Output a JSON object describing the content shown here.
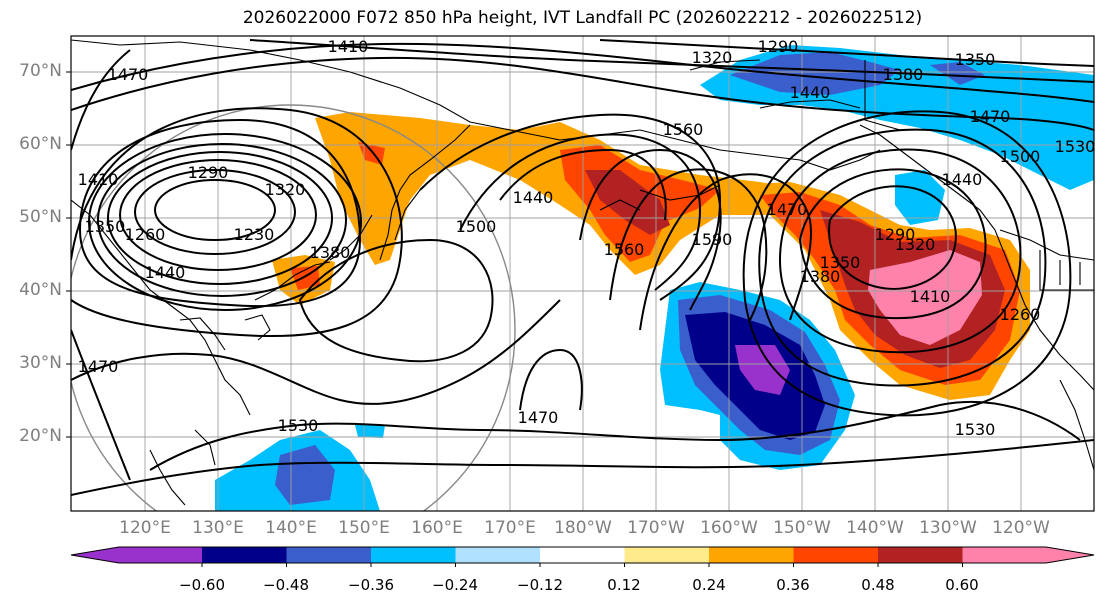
{
  "title": "2026022000 F072 850 hPa height, IVT Landfall PC (2026022212 - 2026022512)",
  "axes": {
    "lat_labels": [
      "70°N",
      "60°N",
      "50°N",
      "40°N",
      "30°N",
      "20°N"
    ],
    "lon_labels": [
      "120°E",
      "130°E",
      "140°E",
      "150°E",
      "160°E",
      "170°E",
      "180°W",
      "170°W",
      "160°W",
      "150°W",
      "140°W",
      "130°W",
      "120°W"
    ]
  },
  "contour_labels": [
    "1410",
    "1290",
    "1320",
    "1380",
    "1350",
    "1470",
    "1440",
    "1500",
    "1410",
    "1290",
    "1230",
    "1260",
    "1350",
    "1440",
    "1380",
    "1320",
    "1470",
    "1530",
    "1560",
    "1500",
    "1440",
    "1470",
    "1590",
    "1560",
    "1470",
    "1380",
    "1350",
    "1320",
    "1290",
    "1410",
    "1260",
    "1530",
    "1470",
    "1530",
    "1440"
  ],
  "colorbar": {
    "ticks": [
      "−0.60",
      "−0.48",
      "−0.36",
      "−0.24",
      "−0.12",
      "0.12",
      "0.24",
      "0.36",
      "0.48",
      "0.60"
    ],
    "colors": [
      "#9932cc",
      "#00008b",
      "#3a5fcd",
      "#00bfff",
      "#b0e2ff",
      "#ffffff",
      "#ffeb8c",
      "#ffa500",
      "#ff4500",
      "#b22222",
      "#ff82ab",
      "#ff82ab"
    ]
  },
  "colors": {
    "frame": "#000000",
    "grid": "#a0a0a0",
    "axis_label": "#7f7f7f"
  }
}
